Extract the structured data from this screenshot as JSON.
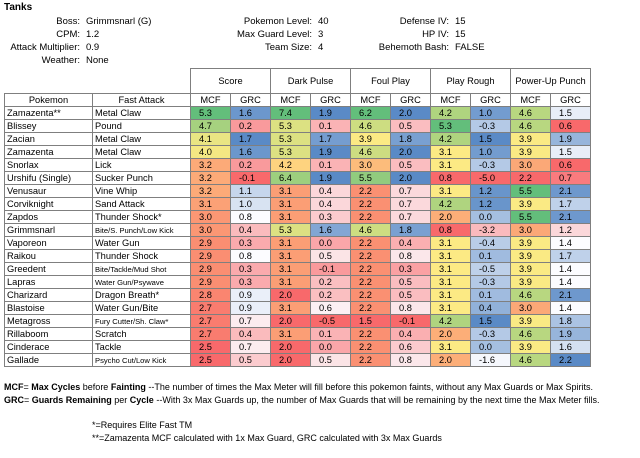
{
  "title": "Tanks",
  "info": [
    [
      {
        "label": "Boss:",
        "value": "Grimmsnarl (G)"
      },
      {
        "label": "CPM:",
        "value": "1.2"
      },
      {
        "label": "Attack Multiplier:",
        "value": "0.9"
      },
      {
        "label": "Weather:",
        "value": "None"
      }
    ],
    [
      {
        "label": "Pokemon Level:",
        "value": "40"
      },
      {
        "label": "Max Guard Level:",
        "value": "3"
      },
      {
        "label": "Team Size:",
        "value": "4"
      }
    ],
    [
      {
        "label": "Defense IV:",
        "value": "15"
      },
      {
        "label": "HP IV:",
        "value": "15"
      },
      {
        "label": "Behemoth Bash:",
        "value": "FALSE"
      }
    ]
  ],
  "headers": {
    "pokemon": "Pokemon",
    "fast_attack": "Fast Attack",
    "groups": [
      "Score",
      "Dark Pulse",
      "Foul Play",
      "Play Rough",
      "Power-Up Punch"
    ],
    "sub": [
      "MCF",
      "GRC"
    ]
  },
  "rows": [
    {
      "name": "Zamazenta**",
      "fast": "Metal Claw",
      "vals": [
        "5.3",
        "1.6",
        "7.4",
        "1.9",
        "6.2",
        "2.0",
        "4.2",
        "1.0",
        "4.6",
        "1.5"
      ]
    },
    {
      "name": "Blissey",
      "fast": "Pound",
      "vals": [
        "4.7",
        "0.2",
        "5.3",
        "0.1",
        "4.6",
        "0.5",
        "5.3",
        "-0.3",
        "4.6",
        "0.6"
      ]
    },
    {
      "name": "Zacian",
      "fast": "Metal Claw",
      "vals": [
        "4.1",
        "1.7",
        "5.3",
        "1.7",
        "3.9",
        "1.8",
        "4.2",
        "1.5",
        "3.9",
        "1.9"
      ]
    },
    {
      "name": "Zamazenta",
      "fast": "Metal Claw",
      "vals": [
        "4.0",
        "1.6",
        "5.3",
        "1.9",
        "4.6",
        "2.0",
        "3.1",
        "1.0",
        "3.9",
        "1.5"
      ]
    },
    {
      "name": "Snorlax",
      "fast": "Lick",
      "vals": [
        "3.2",
        "0.2",
        "4.2",
        "0.1",
        "3.0",
        "0.5",
        "3.1",
        "-0.3",
        "3.0",
        "0.6"
      ]
    },
    {
      "name": "Urshifu (Single)",
      "fast": "Sucker Punch",
      "vals": [
        "3.2",
        "-0.1",
        "6.4",
        "1.9",
        "5.5",
        "2.0",
        "0.8",
        "-5.0",
        "2.2",
        "0.7"
      ]
    },
    {
      "name": "Venusaur",
      "fast": "Vine Whip",
      "vals": [
        "3.2",
        "1.1",
        "3.1",
        "0.4",
        "2.2",
        "0.7",
        "3.1",
        "1.2",
        "5.5",
        "2.1"
      ]
    },
    {
      "name": "Corviknight",
      "fast": "Sand Attack",
      "vals": [
        "3.1",
        "1.0",
        "3.1",
        "0.4",
        "2.2",
        "0.7",
        "4.2",
        "1.2",
        "3.9",
        "1.7"
      ]
    },
    {
      "name": "Zapdos",
      "fast": "Thunder Shock*",
      "vals": [
        "3.0",
        "0.8",
        "3.1",
        "0.3",
        "2.2",
        "0.7",
        "2.0",
        "0.0",
        "5.5",
        "2.1"
      ]
    },
    {
      "name": "Grimmsnarl",
      "fast": "Bite/S. Punch/Low Kick",
      "small": true,
      "vals": [
        "3.0",
        "0.4",
        "5.3",
        "1.6",
        "4.6",
        "1.8",
        "0.8",
        "-3.2",
        "3.0",
        "1.2"
      ]
    },
    {
      "name": "Vaporeon",
      "fast": "Water Gun",
      "vals": [
        "2.9",
        "0.3",
        "3.1",
        "0.0",
        "2.2",
        "0.4",
        "3.1",
        "-0.4",
        "3.9",
        "1.4"
      ]
    },
    {
      "name": "Raikou",
      "fast": "Thunder Shock",
      "vals": [
        "2.9",
        "0.8",
        "3.1",
        "0.5",
        "2.2",
        "0.8",
        "3.1",
        "0.1",
        "3.9",
        "1.7"
      ]
    },
    {
      "name": "Greedent",
      "fast": "Bite/Tackle/Mud Shot",
      "small": true,
      "vals": [
        "2.9",
        "0.3",
        "3.1",
        "-0.1",
        "2.2",
        "0.3",
        "3.1",
        "-0.5",
        "3.9",
        "1.4"
      ]
    },
    {
      "name": "Lapras",
      "fast": "Water Gun/Psywave",
      "small": true,
      "vals": [
        "2.9",
        "0.3",
        "3.1",
        "0.2",
        "2.2",
        "0.5",
        "3.1",
        "-0.3",
        "3.9",
        "1.4"
      ]
    },
    {
      "name": "Charizard",
      "fast": "Dragon Breath*",
      "vals": [
        "2.8",
        "0.9",
        "2.0",
        "0.2",
        "2.2",
        "0.5",
        "3.1",
        "0.1",
        "4.6",
        "2.1"
      ]
    },
    {
      "name": "Blastoise",
      "fast": "Water Gun/Bite",
      "vals": [
        "2.7",
        "0.9",
        "3.1",
        "0.6",
        "2.2",
        "0.8",
        "3.1",
        "0.4",
        "3.0",
        "1.4"
      ]
    },
    {
      "name": "Metagross",
      "fast": "Fury Cutter/Sh. Claw*",
      "small": true,
      "vals": [
        "2.7",
        "0.7",
        "2.0",
        "-0.5",
        "1.5",
        "-0.1",
        "4.2",
        "1.5",
        "3.9",
        "1.8"
      ]
    },
    {
      "name": "Rillaboom",
      "fast": "Scratch",
      "vals": [
        "2.7",
        "0.4",
        "3.1",
        "0.1",
        "2.2",
        "0.4",
        "2.0",
        "-0.3",
        "4.6",
        "1.9"
      ]
    },
    {
      "name": "Cinderace",
      "fast": "Tackle",
      "vals": [
        "2.5",
        "0.7",
        "2.0",
        "0.0",
        "2.2",
        "0.6",
        "3.1",
        "0.0",
        "3.9",
        "1.6"
      ]
    },
    {
      "name": "Gallade",
      "fast": "Psycho Cut/Low Kick",
      "small": true,
      "vals": [
        "2.5",
        "0.5",
        "2.0",
        "0.5",
        "2.2",
        "0.8",
        "2.0",
        "-1.6",
        "4.6",
        "2.2"
      ]
    }
  ],
  "notes": {
    "mcf_term": "MCF",
    "mcf_eq": "= ",
    "mcf_b1": "Max Cycles",
    "mcf_t1": " before ",
    "mcf_b2": "Fainting",
    "mcf_rest": " --The number of times the Max Meter will fill before this pokemon faints, without any Max Guards or Max Spirits.",
    "grc_term": "GRC",
    "grc_eq": "= ",
    "grc_b1": "Guards Remaining",
    "grc_t1": " per ",
    "grc_b2": "Cycle",
    "grc_rest": " --With 3x Max Guards up, the number of Max Guards that will be remaining by the next time the Max Meter fills.",
    "elite": "*=Requires Elite Fast TM",
    "zamazenta": "**=Zamazenta MCF calculated with 1x Max Guard, GRC calculated with 3x Max Guards"
  }
}
